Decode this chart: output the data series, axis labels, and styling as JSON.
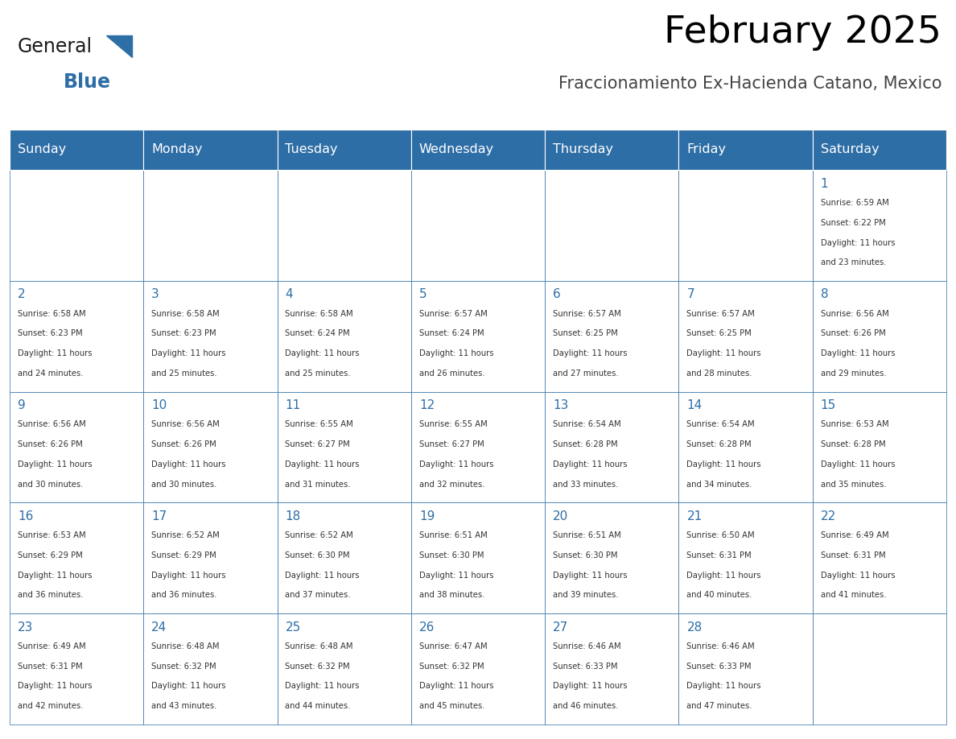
{
  "title": "February 2025",
  "subtitle": "Fraccionamiento Ex-Hacienda Catano, Mexico",
  "header_bg_color": "#2E6EA6",
  "header_text_color": "#FFFFFF",
  "day_names": [
    "Sunday",
    "Monday",
    "Tuesday",
    "Wednesday",
    "Thursday",
    "Friday",
    "Saturday"
  ],
  "border_color": "#2E6EA6",
  "date_color": "#2E6EA6",
  "text_color": "#333333",
  "logo_general_color": "#1a1a1a",
  "logo_blue_color": "#2E6EA6",
  "days": [
    {
      "day": 1,
      "row": 0,
      "col": 6,
      "sunrise": "6:59 AM",
      "sunset": "6:22 PM",
      "daylight": "11 hours and 23 minutes"
    },
    {
      "day": 2,
      "row": 1,
      "col": 0,
      "sunrise": "6:58 AM",
      "sunset": "6:23 PM",
      "daylight": "11 hours and 24 minutes"
    },
    {
      "day": 3,
      "row": 1,
      "col": 1,
      "sunrise": "6:58 AM",
      "sunset": "6:23 PM",
      "daylight": "11 hours and 25 minutes"
    },
    {
      "day": 4,
      "row": 1,
      "col": 2,
      "sunrise": "6:58 AM",
      "sunset": "6:24 PM",
      "daylight": "11 hours and 25 minutes"
    },
    {
      "day": 5,
      "row": 1,
      "col": 3,
      "sunrise": "6:57 AM",
      "sunset": "6:24 PM",
      "daylight": "11 hours and 26 minutes"
    },
    {
      "day": 6,
      "row": 1,
      "col": 4,
      "sunrise": "6:57 AM",
      "sunset": "6:25 PM",
      "daylight": "11 hours and 27 minutes"
    },
    {
      "day": 7,
      "row": 1,
      "col": 5,
      "sunrise": "6:57 AM",
      "sunset": "6:25 PM",
      "daylight": "11 hours and 28 minutes"
    },
    {
      "day": 8,
      "row": 1,
      "col": 6,
      "sunrise": "6:56 AM",
      "sunset": "6:26 PM",
      "daylight": "11 hours and 29 minutes"
    },
    {
      "day": 9,
      "row": 2,
      "col": 0,
      "sunrise": "6:56 AM",
      "sunset": "6:26 PM",
      "daylight": "11 hours and 30 minutes"
    },
    {
      "day": 10,
      "row": 2,
      "col": 1,
      "sunrise": "6:56 AM",
      "sunset": "6:26 PM",
      "daylight": "11 hours and 30 minutes"
    },
    {
      "day": 11,
      "row": 2,
      "col": 2,
      "sunrise": "6:55 AM",
      "sunset": "6:27 PM",
      "daylight": "11 hours and 31 minutes"
    },
    {
      "day": 12,
      "row": 2,
      "col": 3,
      "sunrise": "6:55 AM",
      "sunset": "6:27 PM",
      "daylight": "11 hours and 32 minutes"
    },
    {
      "day": 13,
      "row": 2,
      "col": 4,
      "sunrise": "6:54 AM",
      "sunset": "6:28 PM",
      "daylight": "11 hours and 33 minutes"
    },
    {
      "day": 14,
      "row": 2,
      "col": 5,
      "sunrise": "6:54 AM",
      "sunset": "6:28 PM",
      "daylight": "11 hours and 34 minutes"
    },
    {
      "day": 15,
      "row": 2,
      "col": 6,
      "sunrise": "6:53 AM",
      "sunset": "6:28 PM",
      "daylight": "11 hours and 35 minutes"
    },
    {
      "day": 16,
      "row": 3,
      "col": 0,
      "sunrise": "6:53 AM",
      "sunset": "6:29 PM",
      "daylight": "11 hours and 36 minutes"
    },
    {
      "day": 17,
      "row": 3,
      "col": 1,
      "sunrise": "6:52 AM",
      "sunset": "6:29 PM",
      "daylight": "11 hours and 36 minutes"
    },
    {
      "day": 18,
      "row": 3,
      "col": 2,
      "sunrise": "6:52 AM",
      "sunset": "6:30 PM",
      "daylight": "11 hours and 37 minutes"
    },
    {
      "day": 19,
      "row": 3,
      "col": 3,
      "sunrise": "6:51 AM",
      "sunset": "6:30 PM",
      "daylight": "11 hours and 38 minutes"
    },
    {
      "day": 20,
      "row": 3,
      "col": 4,
      "sunrise": "6:51 AM",
      "sunset": "6:30 PM",
      "daylight": "11 hours and 39 minutes"
    },
    {
      "day": 21,
      "row": 3,
      "col": 5,
      "sunrise": "6:50 AM",
      "sunset": "6:31 PM",
      "daylight": "11 hours and 40 minutes"
    },
    {
      "day": 22,
      "row": 3,
      "col": 6,
      "sunrise": "6:49 AM",
      "sunset": "6:31 PM",
      "daylight": "11 hours and 41 minutes"
    },
    {
      "day": 23,
      "row": 4,
      "col": 0,
      "sunrise": "6:49 AM",
      "sunset": "6:31 PM",
      "daylight": "11 hours and 42 minutes"
    },
    {
      "day": 24,
      "row": 4,
      "col": 1,
      "sunrise": "6:48 AM",
      "sunset": "6:32 PM",
      "daylight": "11 hours and 43 minutes"
    },
    {
      "day": 25,
      "row": 4,
      "col": 2,
      "sunrise": "6:48 AM",
      "sunset": "6:32 PM",
      "daylight": "11 hours and 44 minutes"
    },
    {
      "day": 26,
      "row": 4,
      "col": 3,
      "sunrise": "6:47 AM",
      "sunset": "6:32 PM",
      "daylight": "11 hours and 45 minutes"
    },
    {
      "day": 27,
      "row": 4,
      "col": 4,
      "sunrise": "6:46 AM",
      "sunset": "6:33 PM",
      "daylight": "11 hours and 46 minutes"
    },
    {
      "day": 28,
      "row": 4,
      "col": 5,
      "sunrise": "6:46 AM",
      "sunset": "6:33 PM",
      "daylight": "11 hours and 47 minutes"
    }
  ],
  "num_rows": 5,
  "num_cols": 7,
  "figsize": [
    11.88,
    9.18
  ]
}
